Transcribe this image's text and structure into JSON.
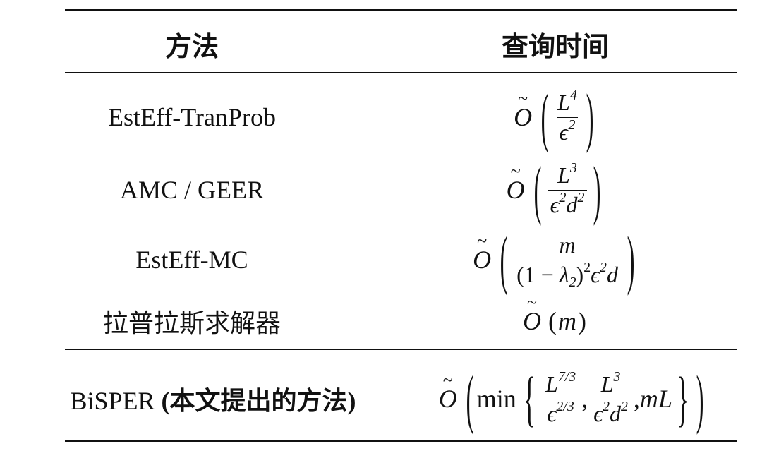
{
  "table": {
    "headers": [
      "方法",
      "查询时间"
    ],
    "rows": [
      {
        "method": "EstEff-TranProb",
        "formula": {
          "big": true,
          "parts": [
            {
              "frac": {
                "num": [
                  {
                    "t": "L",
                    "it": true,
                    "sup": "4"
                  }
                ],
                "den": [
                  {
                    "t": "ϵ",
                    "it": true,
                    "sup": "2"
                  }
                ]
              }
            }
          ]
        }
      },
      {
        "method": "AMC / GEER",
        "formula": {
          "big": true,
          "parts": [
            {
              "frac": {
                "num": [
                  {
                    "t": "L",
                    "it": true,
                    "sup": "3"
                  }
                ],
                "den": [
                  {
                    "t": "ϵ",
                    "it": true,
                    "sup": "2"
                  },
                  {
                    "t": "d",
                    "it": true,
                    "sup": "2"
                  }
                ]
              }
            }
          ]
        }
      },
      {
        "method": "EstEff-MC",
        "formula": {
          "big": true,
          "parts": [
            {
              "frac": {
                "num": [
                  {
                    "t": "m",
                    "it": true
                  }
                ],
                "den": [
                  {
                    "t": "(1 − "
                  },
                  {
                    "t": "λ",
                    "it": true,
                    "sub": "2"
                  },
                  {
                    "t": ")",
                    "sup": "2"
                  },
                  {
                    "t": "ϵ",
                    "it": true,
                    "sup": "2"
                  },
                  {
                    "t": "d",
                    "it": true
                  }
                ]
              }
            }
          ]
        }
      },
      {
        "method": "拉普拉斯求解器",
        "formula": {
          "big": false,
          "parts": [
            {
              "tok": {
                "t": "m",
                "it": true
              }
            }
          ]
        }
      }
    ],
    "highlight_row": {
      "method_name": "BiSPER",
      "method_note": "(本文提出的方法)",
      "formula": {
        "big": true,
        "brace": true,
        "prefix": "min",
        "parts": [
          {
            "frac": {
              "num": [
                {
                  "t": "L",
                  "it": true,
                  "sup": "7/3"
                }
              ],
              "den": [
                {
                  "t": "ϵ",
                  "it": true,
                  "sup": "2/3"
                }
              ]
            }
          },
          {
            "tok": {
              "t": ","
            }
          },
          {
            "frac": {
              "num": [
                {
                  "t": "L",
                  "it": true,
                  "sup": "3"
                }
              ],
              "den": [
                {
                  "t": "ϵ",
                  "it": true,
                  "sup": "2"
                },
                {
                  "t": "d",
                  "it": true,
                  "sup": "2"
                }
              ]
            }
          },
          {
            "tok": {
              "t": ","
            }
          },
          {
            "tok": {
              "t": "mL",
              "it": true
            }
          }
        ]
      }
    },
    "operator": "O"
  }
}
